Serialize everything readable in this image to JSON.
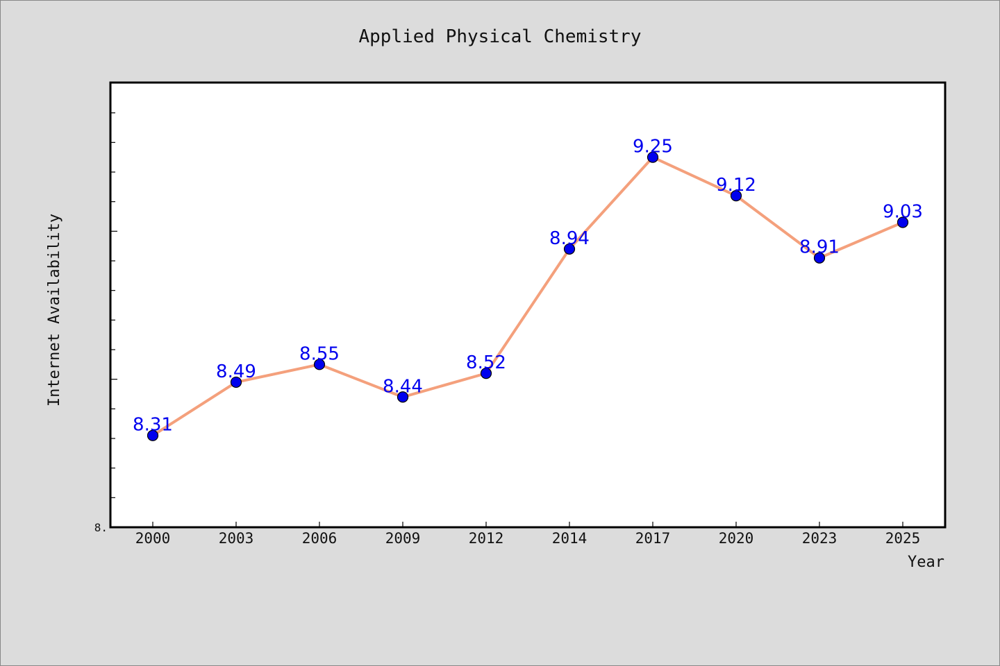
{
  "chart_data": {
    "type": "line",
    "title": "Applied Physical Chemistry",
    "xlabel": "Year",
    "ylabel": "Internet Availability",
    "x": [
      "2000",
      "2003",
      "2006",
      "2009",
      "2012",
      "2014",
      "2017",
      "2020",
      "2023",
      "2025"
    ],
    "series": [
      {
        "values": [
          8.31,
          8.49,
          8.55,
          8.44,
          8.52,
          8.94,
          9.25,
          9.12,
          8.91,
          9.03
        ]
      }
    ],
    "ylim": [
      8.0,
      9.5
    ],
    "ytick_text": "8.",
    "grid": false,
    "line_color": "#f4a07c",
    "marker_color": "#0000ee",
    "label_color": "#0000ee",
    "plot_background": "#ffffff",
    "page_background": "#dcdcdc"
  }
}
